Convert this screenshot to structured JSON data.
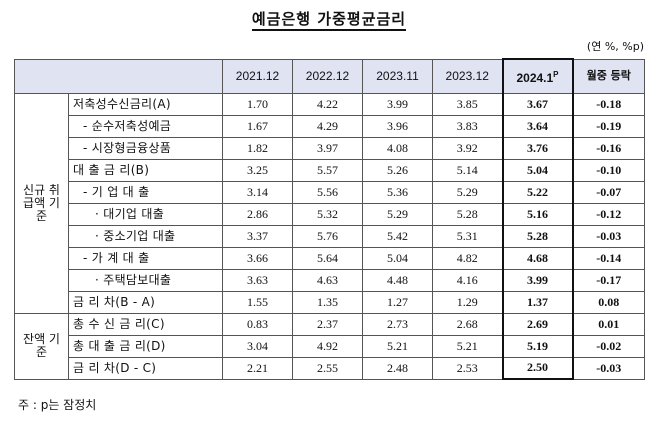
{
  "title": "예금은행 가중평균금리",
  "unit": "(연 %, %p)",
  "columns": [
    "2021.12",
    "2022.12",
    "2023.11",
    "2023.12",
    "2024.1",
    "월중 등락"
  ],
  "current_superscript": "P",
  "groups": [
    {
      "label": "신규 취급액 기준",
      "rows": [
        {
          "label": "저축성수신금리(A)",
          "values": [
            "1.70",
            "4.22",
            "3.99",
            "3.85",
            "3.67",
            "-0.18"
          ]
        },
        {
          "label": "- 순수저축성예금",
          "values": [
            "1.67",
            "4.29",
            "3.96",
            "3.83",
            "3.64",
            "-0.19"
          ]
        },
        {
          "label": "- 시장형금융상품",
          "values": [
            "1.82",
            "3.97",
            "4.08",
            "3.92",
            "3.76",
            "-0.16"
          ]
        },
        {
          "label": "대 출 금 리(B)",
          "values": [
            "3.25",
            "5.57",
            "5.26",
            "5.14",
            "5.04",
            "-0.10"
          ]
        },
        {
          "label": "- 기 업 대 출",
          "values": [
            "3.14",
            "5.56",
            "5.36",
            "5.29",
            "5.22",
            "-0.07"
          ]
        },
        {
          "label": "· 대기업 대출",
          "values": [
            "2.86",
            "5.32",
            "5.29",
            "5.28",
            "5.16",
            "-0.12"
          ]
        },
        {
          "label": "· 중소기업 대출",
          "values": [
            "3.37",
            "5.76",
            "5.42",
            "5.31",
            "5.28",
            "-0.03"
          ]
        },
        {
          "label": "- 가 계 대 출",
          "values": [
            "3.66",
            "5.64",
            "5.04",
            "4.82",
            "4.68",
            "-0.14"
          ]
        },
        {
          "label": "· 주택담보대출",
          "values": [
            "3.63",
            "4.63",
            "4.48",
            "4.16",
            "3.99",
            "-0.17"
          ]
        },
        {
          "label": "금 리 차(B - A)",
          "values": [
            "1.55",
            "1.35",
            "1.27",
            "1.29",
            "1.37",
            "0.08"
          ]
        }
      ]
    },
    {
      "label": "잔액 기준",
      "rows": [
        {
          "label": "총 수 신 금 리(C)",
          "values": [
            "0.83",
            "2.37",
            "2.73",
            "2.68",
            "2.69",
            "0.01"
          ]
        },
        {
          "label": "총 대 출 금 리(D)",
          "values": [
            "3.04",
            "4.92",
            "5.21",
            "5.21",
            "5.19",
            "-0.02"
          ]
        },
        {
          "label": "금 리 차(D - C)",
          "values": [
            "2.21",
            "2.55",
            "2.48",
            "2.53",
            "2.50",
            "-0.03"
          ]
        }
      ]
    }
  ],
  "note": "주 : p는 잠정치"
}
